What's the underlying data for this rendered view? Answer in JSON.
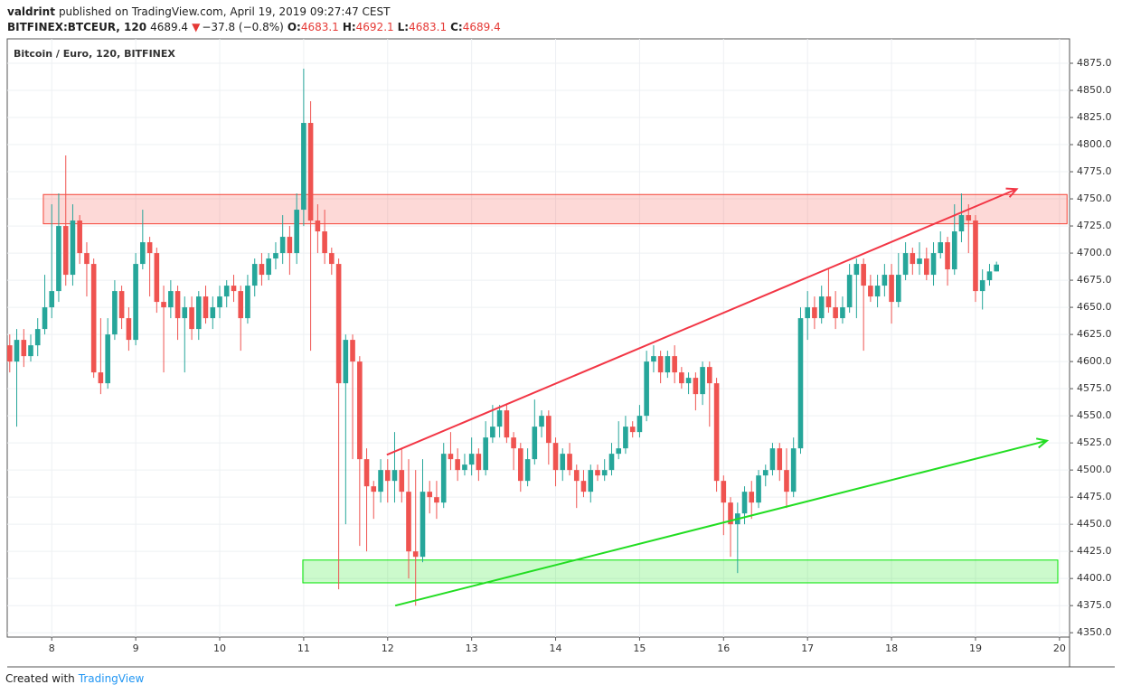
{
  "header": {
    "author": "valdrint",
    "published": "published on TradingView.com, April 19, 2019 09:27:47 CEST",
    "symbol": "BITFINEX:BTCEUR, 120",
    "last": "4689.4",
    "arrow": "▼",
    "change": "−37.8 (−0.8%)",
    "o_label": "O:",
    "o": "4683.1",
    "h_label": "H:",
    "h": "4692.1",
    "l_label": "L:",
    "l": "4683.1",
    "c_label": "C:",
    "c": "4689.4"
  },
  "footer": {
    "created": "Created with",
    "brand": "TradingView"
  },
  "chart_data": {
    "type": "candlestick",
    "title": "Bitcoin / Euro, 120, BITFINEX",
    "up_color": "#26a69a",
    "down_color": "#ef5350",
    "x": [
      7.5,
      7.583,
      7.667,
      7.75,
      7.833,
      7.917,
      8,
      8.083,
      8.167,
      8.25,
      8.333,
      8.417,
      8.5,
      8.583,
      8.667,
      8.75,
      8.833,
      8.917,
      9,
      9.083,
      9.167,
      9.25,
      9.333,
      9.417,
      9.5,
      9.583,
      9.667,
      9.75,
      9.833,
      9.917,
      10,
      10.083,
      10.167,
      10.25,
      10.333,
      10.417,
      10.5,
      10.583,
      10.667,
      10.75,
      10.833,
      10.917,
      11,
      11.083,
      11.167,
      11.25,
      11.333,
      11.417,
      11.5,
      11.583,
      11.667,
      11.75,
      11.833,
      11.917,
      12,
      12.083,
      12.167,
      12.25,
      12.333,
      12.417,
      12.5,
      12.583,
      12.667,
      12.75,
      12.833,
      12.917,
      13,
      13.083,
      13.167,
      13.25,
      13.333,
      13.417,
      13.5,
      13.583,
      13.667,
      13.75,
      13.833,
      13.917,
      14,
      14.083,
      14.167,
      14.25,
      14.333,
      14.417,
      14.5,
      14.583,
      14.667,
      14.75,
      14.833,
      14.917,
      15,
      15.083,
      15.167,
      15.25,
      15.333,
      15.417,
      15.5,
      15.583,
      15.667,
      15.75,
      15.833,
      15.917,
      16,
      16.083,
      16.167,
      16.25,
      16.333,
      16.417,
      16.5,
      16.583,
      16.667,
      16.75,
      16.833,
      16.917,
      17,
      17.083,
      17.167,
      17.25,
      17.333,
      17.417,
      17.5,
      17.583,
      17.667,
      17.75,
      17.833,
      17.917,
      18,
      18.083,
      18.167,
      18.25,
      18.333,
      18.417,
      18.5,
      18.583,
      18.667,
      18.75,
      18.833,
      18.917,
      19,
      19.083,
      19.167,
      19.25
    ],
    "open": [
      4615,
      4600,
      4620,
      4605,
      4615,
      4630,
      4650,
      4665,
      4725,
      4680,
      4730,
      4700,
      4690,
      4590,
      4580,
      4625,
      4665,
      4640,
      4620,
      4690,
      4710,
      4700,
      4655,
      4650,
      4665,
      4640,
      4650,
      4630,
      4660,
      4640,
      4650,
      4660,
      4670,
      4665,
      4640,
      4670,
      4690,
      4680,
      4695,
      4700,
      4715,
      4700,
      4740,
      4820,
      4730,
      4720,
      4700,
      4690,
      4580,
      4620,
      4600,
      4510,
      4485,
      4480,
      4500,
      4490,
      4500,
      4480,
      4425,
      4420,
      4480,
      4475,
      4470,
      4515,
      4510,
      4500,
      4505,
      4515,
      4500,
      4530,
      4540,
      4555,
      4530,
      4520,
      4490,
      4510,
      4540,
      4550,
      4525,
      4500,
      4515,
      4500,
      4490,
      4480,
      4500,
      4495,
      4500,
      4515,
      4520,
      4540,
      4535,
      4550,
      4600,
      4605,
      4590,
      4605,
      4590,
      4580,
      4585,
      4570,
      4595,
      4580,
      4490,
      4470,
      4450,
      4460,
      4480,
      4470,
      4495,
      4500,
      4520,
      4500,
      4480,
      4520,
      4640,
      4650,
      4640,
      4660,
      4650,
      4640,
      4650,
      4680,
      4690,
      4670,
      4660,
      4670,
      4680,
      4655,
      4680,
      4700,
      4690,
      4695,
      4680,
      4700,
      4710,
      4685,
      4720,
      4735,
      4730,
      4665,
      4675,
      4683.1
    ],
    "high": [
      4625,
      4630,
      4630,
      4625,
      4640,
      4680,
      4745,
      4755,
      4790,
      4745,
      4735,
      4710,
      4695,
      4640,
      4640,
      4675,
      4670,
      4650,
      4700,
      4740,
      4715,
      4705,
      4670,
      4675,
      4670,
      4660,
      4660,
      4665,
      4670,
      4660,
      4670,
      4675,
      4680,
      4670,
      4680,
      4695,
      4700,
      4700,
      4710,
      4735,
      4725,
      4755,
      4870,
      4840,
      4745,
      4740,
      4705,
      4695,
      4625,
      4625,
      4605,
      4520,
      4490,
      4510,
      4510,
      4535,
      4520,
      4510,
      4500,
      4510,
      4490,
      4490,
      4525,
      4535,
      4520,
      4515,
      4530,
      4520,
      4545,
      4560,
      4560,
      4560,
      4535,
      4525,
      4520,
      4565,
      4555,
      4555,
      4530,
      4520,
      4525,
      4505,
      4500,
      4505,
      4505,
      4510,
      4525,
      4545,
      4550,
      4545,
      4560,
      4610,
      4615,
      4610,
      4610,
      4615,
      4595,
      4590,
      4590,
      4600,
      4600,
      4585,
      4495,
      4475,
      4470,
      4485,
      4490,
      4500,
      4505,
      4525,
      4525,
      4520,
      4530,
      4650,
      4665,
      4660,
      4670,
      4685,
      4665,
      4660,
      4690,
      4695,
      4695,
      4680,
      4680,
      4690,
      4690,
      4700,
      4710,
      4705,
      4710,
      4705,
      4710,
      4720,
      4715,
      4745,
      4755,
      4745,
      4735,
      4685,
      4690,
      4692.1
    ],
    "low": [
      4590,
      4540,
      4595,
      4600,
      4605,
      4625,
      4640,
      4655,
      4670,
      4670,
      4690,
      4660,
      4585,
      4570,
      4575,
      4620,
      4630,
      4610,
      4615,
      4685,
      4660,
      4645,
      4590,
      4640,
      4620,
      4590,
      4620,
      4620,
      4635,
      4630,
      4640,
      4650,
      4655,
      4610,
      4635,
      4660,
      4670,
      4675,
      4685,
      4690,
      4680,
      4690,
      4725,
      4610,
      4700,
      4690,
      4680,
      4390,
      4450,
      4510,
      4430,
      4425,
      4455,
      4470,
      4470,
      4470,
      4470,
      4400,
      4375,
      4415,
      4460,
      4455,
      4465,
      4500,
      4490,
      4495,
      4495,
      4490,
      4495,
      4525,
      4530,
      4525,
      4500,
      4480,
      4485,
      4505,
      4530,
      4505,
      4485,
      4490,
      4495,
      4465,
      4475,
      4470,
      4490,
      4490,
      4495,
      4510,
      4515,
      4530,
      4530,
      4545,
      4590,
      4580,
      4585,
      4580,
      4575,
      4570,
      4555,
      4560,
      4540,
      4480,
      4440,
      4420,
      4405,
      4450,
      4455,
      4465,
      4485,
      4495,
      4490,
      4465,
      4475,
      4515,
      4620,
      4630,
      4635,
      4645,
      4630,
      4635,
      4645,
      4640,
      4610,
      4655,
      4650,
      4660,
      4635,
      4650,
      4675,
      4680,
      4680,
      4675,
      4670,
      4695,
      4670,
      4680,
      4710,
      4700,
      4655,
      4648,
      4670,
      4683.1
    ],
    "close": [
      4600,
      4620,
      4605,
      4615,
      4630,
      4650,
      4665,
      4725,
      4680,
      4730,
      4700,
      4690,
      4590,
      4580,
      4625,
      4665,
      4640,
      4620,
      4690,
      4710,
      4700,
      4655,
      4650,
      4665,
      4640,
      4650,
      4630,
      4660,
      4640,
      4650,
      4660,
      4670,
      4665,
      4640,
      4670,
      4690,
      4680,
      4695,
      4700,
      4715,
      4700,
      4740,
      4820,
      4730,
      4720,
      4700,
      4690,
      4580,
      4620,
      4600,
      4510,
      4485,
      4480,
      4500,
      4490,
      4500,
      4480,
      4425,
      4420,
      4480,
      4475,
      4470,
      4515,
      4510,
      4500,
      4505,
      4515,
      4500,
      4530,
      4540,
      4555,
      4530,
      4520,
      4490,
      4510,
      4540,
      4550,
      4525,
      4500,
      4515,
      4500,
      4490,
      4480,
      4500,
      4495,
      4500,
      4515,
      4520,
      4540,
      4535,
      4550,
      4600,
      4605,
      4590,
      4605,
      4590,
      4580,
      4585,
      4570,
      4595,
      4580,
      4490,
      4470,
      4450,
      4460,
      4480,
      4470,
      4495,
      4500,
      4520,
      4500,
      4480,
      4520,
      4640,
      4650,
      4640,
      4660,
      4650,
      4640,
      4650,
      4680,
      4690,
      4670,
      4660,
      4670,
      4680,
      4655,
      4680,
      4700,
      4690,
      4695,
      4680,
      4700,
      4710,
      4685,
      4720,
      4735,
      4730,
      4665,
      4675,
      4683.1,
      4689.4
    ],
    "zones": [
      {
        "x": [
          7.9,
          20.09
        ],
        "y": [
          4727,
          4754
        ],
        "color": "#f44336"
      },
      {
        "x": [
          10.99,
          19.98
        ],
        "y": [
          4396,
          4417
        ],
        "color": "#00e600"
      }
    ],
    "trendlines": [
      {
        "x": [
          11.99,
          19.49
        ],
        "y": [
          4514,
          4759
        ],
        "color": "#f23645"
      },
      {
        "x": [
          12.09,
          19.85
        ],
        "y": [
          4375,
          4527
        ],
        "color": "#22dd22"
      }
    ],
    "xlim": [
      7.47,
      20.12
    ],
    "xticks": [
      8,
      9,
      10,
      11,
      12,
      13,
      14,
      15,
      16,
      17,
      18,
      19,
      20
    ],
    "ylim": [
      4346,
      4897.5
    ],
    "yticks": [
      {
        "value": 4350,
        "label": "4350.0"
      },
      {
        "value": 4375,
        "label": "4375.0"
      },
      {
        "value": 4400,
        "label": "4400.0"
      },
      {
        "value": 4425,
        "label": "4425.0"
      },
      {
        "value": 4450,
        "label": "4450.0"
      },
      {
        "value": 4475,
        "label": "4475.0"
      },
      {
        "value": 4500,
        "label": "4500.0"
      },
      {
        "value": 4525,
        "label": "4525.0"
      },
      {
        "value": 4550,
        "label": "4550.0"
      },
      {
        "value": 4575,
        "label": "4575.0"
      },
      {
        "value": 4600,
        "label": "4600.0"
      },
      {
        "value": 4625,
        "label": "4625.0"
      },
      {
        "value": 4650,
        "label": "4650.0"
      },
      {
        "value": 4675,
        "label": "4675.0"
      },
      {
        "value": 4700,
        "label": "4700.0"
      },
      {
        "value": 4725,
        "label": "4725.0"
      },
      {
        "value": 4750,
        "label": "4750.0"
      },
      {
        "value": 4775,
        "label": "4775.0"
      },
      {
        "value": 4800,
        "label": "4800.0"
      },
      {
        "value": 4825,
        "label": "4825.0"
      },
      {
        "value": 4850,
        "label": "4850.0"
      },
      {
        "value": 4875,
        "label": "4875.0"
      }
    ],
    "grid": true
  }
}
